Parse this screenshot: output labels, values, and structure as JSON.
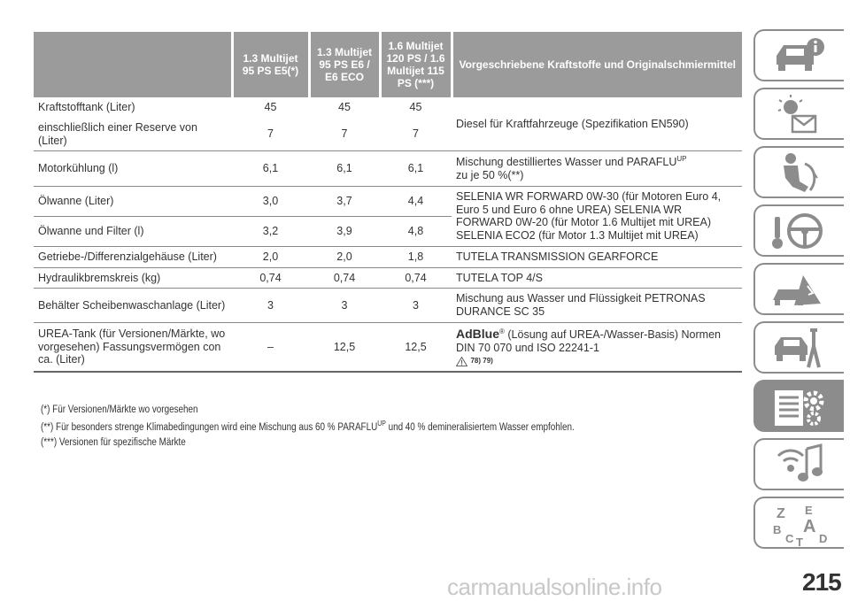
{
  "table": {
    "headers": [
      "",
      "1.3 Multijet 95 PS E5(*)",
      "1.3 Multijet 95 PS E6 / E6 ECO",
      "1.6 Multijet 120 PS / 1.6 Multijet 115 PS (***)",
      "Vorgeschriebene Kraftstoffe und Originalschmiermittel"
    ],
    "rows": [
      {
        "label": "Kraftstofftank (Liter)",
        "v1": "45",
        "v2": "45",
        "v3": "45"
      },
      {
        "label": "einschließlich einer Reserve von (Liter)",
        "v1": "7",
        "v2": "7",
        "v3": "7"
      },
      {
        "label": "Motorkühlung (l)",
        "v1": "6,1",
        "v2": "6,1",
        "v3": "6,1"
      },
      {
        "label": "Ölwanne (Liter)",
        "v1": "3,0",
        "v2": "3,7",
        "v3": "4,4"
      },
      {
        "label": "Ölwanne und Filter (l)",
        "v1": "3,2",
        "v2": "3,9",
        "v3": "4,8"
      },
      {
        "label": "Getriebe-/Differenzialgehäuse (Liter)",
        "v1": "2,0",
        "v2": "2,0",
        "v3": "1,8"
      },
      {
        "label": "Hydraulikbremskreis (kg)",
        "v1": "0,74",
        "v2": "0,74",
        "v3": "0,74"
      },
      {
        "label": "Behälter Scheibenwaschanlage (Liter)",
        "v1": "3",
        "v2": "3",
        "v3": "3"
      },
      {
        "label": "UREA-Tank (für Versionen/Märkte, wo vorgesehen) Fassungsvermögen con ca. (Liter)",
        "v1": "–",
        "v2": "12,5",
        "v3": "12,5"
      }
    ],
    "specs": {
      "fuel": "Diesel für Kraftfahrzeuge (Spezifikation EN590)",
      "coolant": "Mischung destilliertes Wasser und PARAFLU",
      "coolant_sup": "UP",
      "coolant_line2": "zu je 50 %(**)",
      "oil": "SELENIA WR FORWARD 0W-30 (für Motoren Euro 4, Euro 5 und Euro 6 ohne UREA) SELENIA WR FORWARD 0W-20 (für Motor 1.6 Multijet mit UREA) SELENIA ECO2 (für Motor 1.3 Multijet mit UREA)",
      "gearbox": "TUTELA TRANSMISSION GEARFORCE",
      "brake": "TUTELA TOP 4/S",
      "washer": "Mischung aus Wasser und Flüssigkeit PETRONAS DURANCE SC 35",
      "adblue_name": "AdBlue",
      "adblue_reg": "®",
      "adblue_desc": "(Lösung auf UREA-/Wasser-Basis) Normen DIN 70 070 und ISO 22241-1",
      "warning_refs": "78) 79)"
    }
  },
  "footnotes": {
    "note1": "(*) Für Versionen/Märkte wo vorgesehen",
    "note2_pre": "(**) Für besonders strenge Klimabedingungen wird eine Mischung aus 60 % PARAFLU",
    "note2_sup": "UP",
    "note2_post": "und 40 % demineralisiertem Wasser empfohlen.",
    "note3": "(***) Versionen für spezifische Märkte"
  },
  "sidebar": {
    "tabs": [
      {
        "icon": "car-info-icon",
        "active": false
      },
      {
        "icon": "dashboard-lights-icon",
        "active": false
      },
      {
        "icon": "seat-safety-icon",
        "active": false
      },
      {
        "icon": "steering-wheel-key-icon",
        "active": false
      },
      {
        "icon": "warning-emergency-icon",
        "active": false
      },
      {
        "icon": "car-maintenance-icon",
        "active": false
      },
      {
        "icon": "technical-data-icon",
        "active": true
      },
      {
        "icon": "multimedia-icon",
        "active": false
      },
      {
        "icon": "alphabetical-index-icon",
        "active": false
      }
    ]
  },
  "page_number": "215",
  "watermark": "carmanualsonline.info",
  "colors": {
    "header_bg": "#9b9b9b",
    "tab_border": "#8c8c8c",
    "tab_active": "#8c8c8c"
  }
}
